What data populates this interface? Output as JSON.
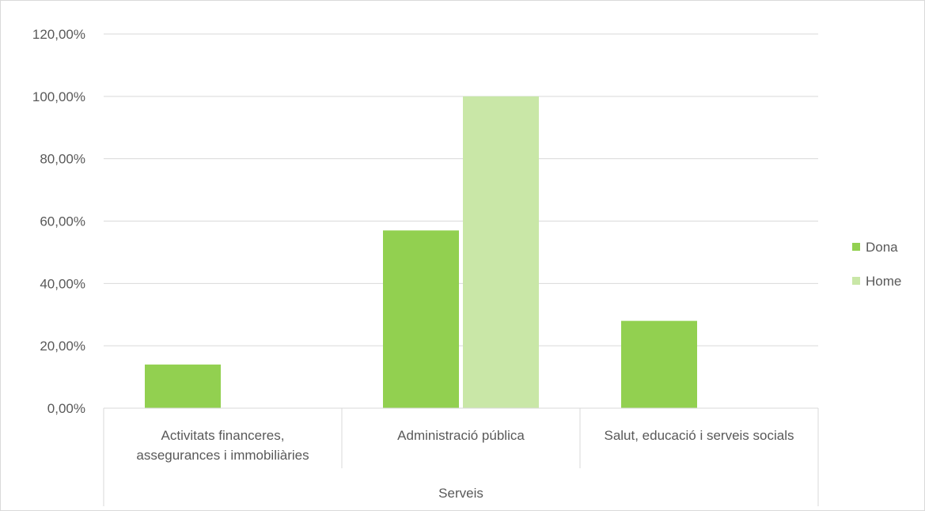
{
  "chart_data": {
    "type": "bar",
    "title": "",
    "xlabel": "",
    "ylabel": "",
    "group_label": "Serveis",
    "categories": [
      [
        "Activitats financeres,",
        "assegurances i immobiliàries"
      ],
      [
        "Administració pública"
      ],
      [
        "Salut, educació i serveis socials"
      ]
    ],
    "series": [
      {
        "name": "Dona",
        "color": "#92d050",
        "values": [
          0.14,
          0.57,
          0.28
        ]
      },
      {
        "name": "Home",
        "color": "#c9e7a7",
        "values": [
          0,
          1.0,
          0
        ]
      }
    ],
    "ylim": [
      0,
      1.2
    ],
    "yticks": [
      {
        "value": 0,
        "label": "0,00%"
      },
      {
        "value": 0.2,
        "label": "20,00%"
      },
      {
        "value": 0.4,
        "label": "40,00%"
      },
      {
        "value": 0.6,
        "label": "60,00%"
      },
      {
        "value": 0.8,
        "label": "80,00%"
      },
      {
        "value": 1.0,
        "label": "100,00%"
      },
      {
        "value": 1.2,
        "label": "120,00%"
      }
    ],
    "grid": true,
    "legend_position": "right",
    "gridline_color": "#d9d9d9"
  }
}
